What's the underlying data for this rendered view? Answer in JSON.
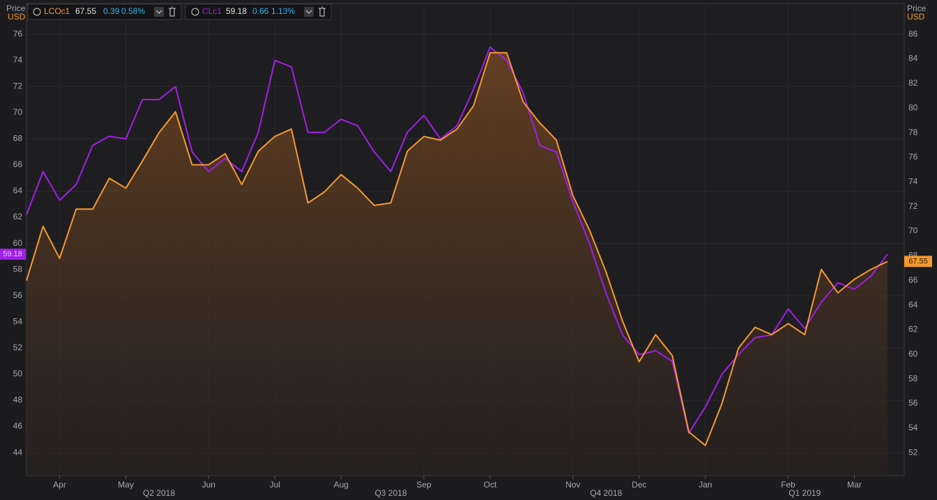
{
  "chart_data": {
    "type": "line",
    "y_label": "Price",
    "y_unit": "USD",
    "y2_label": "Price",
    "y2_unit": "USD",
    "categories": [
      null,
      null,
      "Apr",
      null,
      null,
      null,
      "May",
      null,
      null,
      null,
      null,
      "Jun",
      null,
      null,
      null,
      "Jul",
      null,
      null,
      null,
      "Aug",
      null,
      null,
      null,
      null,
      "Sep",
      null,
      null,
      null,
      "Oct",
      null,
      null,
      null,
      null,
      "Nov",
      null,
      null,
      null,
      "Dec",
      null,
      null,
      null,
      "Jan",
      null,
      null,
      null,
      null,
      "Feb",
      null,
      null,
      null,
      "Mar",
      null,
      null
    ],
    "quarters": [
      null,
      null,
      null,
      null,
      null,
      null,
      null,
      null,
      "Q2 2018",
      null,
      null,
      null,
      null,
      null,
      null,
      null,
      null,
      null,
      null,
      null,
      null,
      null,
      "Q3 2018",
      null,
      null,
      null,
      null,
      null,
      null,
      null,
      null,
      null,
      null,
      null,
      null,
      "Q4 2018",
      null,
      null,
      null,
      null,
      null,
      null,
      null,
      null,
      null,
      null,
      null,
      "Q1 2019",
      null,
      null,
      null,
      null,
      null
    ],
    "series": [
      {
        "name": "LCOc1",
        "color": "#f7992f",
        "axis": "y2",
        "area": true,
        "change": 0.39,
        "change_pct": "0.58%",
        "values": [
          66.0,
          70.4,
          67.8,
          71.8,
          71.8,
          74.3,
          73.5,
          75.7,
          78.0,
          79.7,
          75.4,
          75.4,
          76.3,
          73.8,
          76.5,
          77.7,
          78.3,
          72.3,
          73.2,
          74.6,
          73.5,
          72.1,
          72.3,
          76.5,
          77.7,
          77.4,
          78.3,
          80.2,
          84.5,
          84.5,
          80.5,
          78.8,
          77.4,
          72.9,
          70.1,
          66.7,
          62.7,
          59.4,
          61.6,
          59.9,
          53.7,
          52.6,
          56.0,
          60.5,
          62.2,
          61.6,
          62.5,
          61.6,
          66.9,
          65.0,
          66.1,
          66.9,
          67.55
        ]
      },
      {
        "name": "CLc1",
        "color": "#a11fe6",
        "axis": "y",
        "change": 0.66,
        "change_pct": "1.13%",
        "values": [
          62.2,
          65.5,
          63.3,
          64.5,
          67.5,
          68.2,
          68.0,
          71.0,
          71.0,
          72.0,
          67.0,
          65.5,
          66.5,
          65.5,
          68.5,
          74.0,
          73.5,
          68.5,
          68.5,
          69.5,
          69.0,
          67.0,
          65.5,
          68.5,
          69.8,
          68.0,
          69.0,
          71.8,
          75.0,
          74.0,
          71.5,
          67.5,
          67.0,
          63.2,
          60.0,
          56.2,
          53.0,
          51.5,
          51.8,
          51.0,
          45.5,
          47.5,
          50.0,
          51.5,
          52.8,
          53.0,
          55.0,
          53.5,
          55.5,
          57.0,
          56.5,
          57.5,
          59.18
        ]
      }
    ],
    "ylim": [
      42.25,
      78.35
    ],
    "yticks": [
      44,
      46,
      48,
      50,
      52,
      54,
      56,
      58,
      60,
      62,
      64,
      66,
      68,
      70,
      72,
      74,
      76
    ],
    "y2lim": [
      50.15,
      88.5
    ],
    "y2ticks": [
      52,
      54,
      56,
      58,
      60,
      62,
      64,
      66,
      68,
      70,
      72,
      74,
      76,
      78,
      80,
      82,
      84,
      86
    ],
    "grid": true
  }
}
